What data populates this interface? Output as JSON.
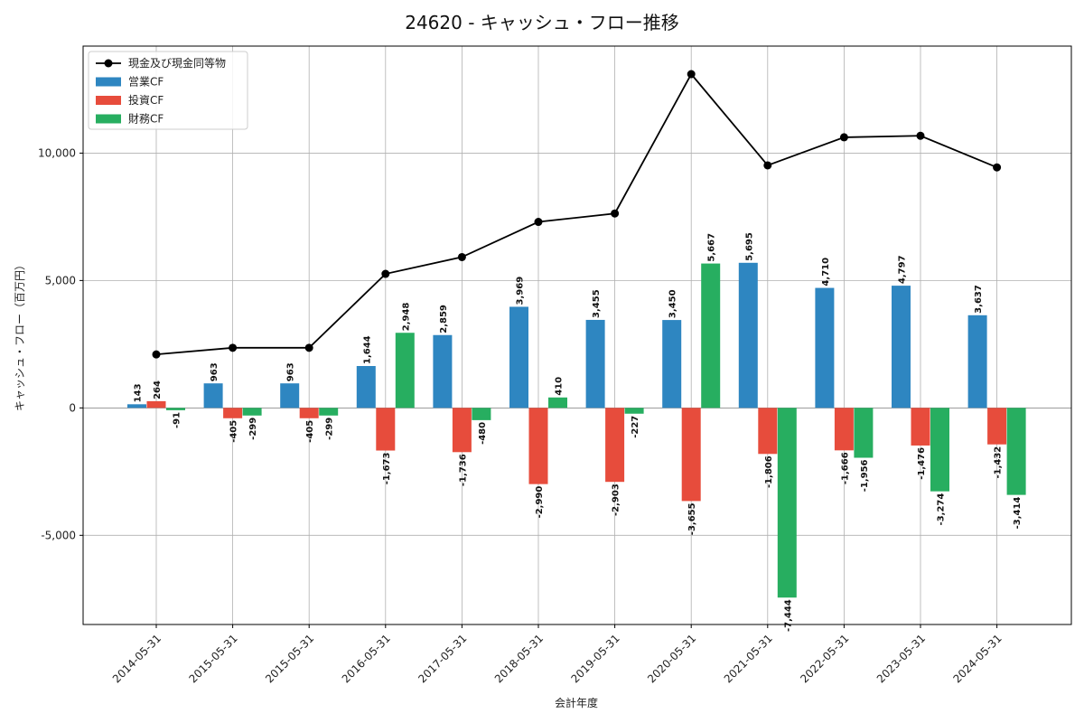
{
  "chart_data": {
    "type": "bar",
    "title": "24620 - キャッシュ・フロー推移",
    "xlabel": "会計年度",
    "ylabel": "キャッシュ・フロー（百万円）",
    "ylim": [
      -8500,
      14200
    ],
    "yticks": [
      -5000,
      0,
      5000,
      10000
    ],
    "ytick_labels": [
      "-5,000",
      "0",
      "5,000",
      "10,000"
    ],
    "grid": true,
    "legend_position": "top-left",
    "categories": [
      "2014-05-31",
      "2015-05-31",
      "2015-05-31",
      "2016-05-31",
      "2017-05-31",
      "2018-05-31",
      "2019-05-31",
      "2020-05-31",
      "2021-05-31",
      "2022-05-31",
      "2023-05-31",
      "2024-05-31"
    ],
    "series": [
      {
        "name": "営業CF",
        "type": "bar",
        "color": "#2e86c1",
        "values": [
          143,
          963,
          963,
          1644,
          2859,
          3969,
          3455,
          3450,
          5695,
          4710,
          4797,
          3637
        ],
        "labels": [
          "143",
          "963",
          "963",
          "1,644",
          "2,859",
          "3,969",
          "3,455",
          "3,450",
          "5,695",
          "4,710",
          "4,797",
          "3,637"
        ]
      },
      {
        "name": "投資CF",
        "type": "bar",
        "color": "#e74c3c",
        "values": [
          264,
          -405,
          -405,
          -1673,
          -1736,
          -2990,
          -2903,
          -3655,
          -1806,
          -1666,
          -1476,
          -1432
        ],
        "labels": [
          "264",
          "-405",
          "-405",
          "-1,673",
          "-1,736",
          "-2,990",
          "-2,903",
          "-3,655",
          "-1,806",
          "-1,666",
          "-1,476",
          "-1,432"
        ]
      },
      {
        "name": "財務CF",
        "type": "bar",
        "color": "#27ae60",
        "values": [
          -91,
          -299,
          -299,
          2948,
          -480,
          410,
          -227,
          5667,
          -7444,
          -1956,
          -3274,
          -3414
        ],
        "labels": [
          "-91",
          "-299",
          "-299",
          "2,948",
          "-480",
          "410",
          "-227",
          "5,667",
          "-7,444",
          "-1,956",
          "-3,274",
          "-3,414"
        ]
      },
      {
        "name": "現金及び現金同等物",
        "type": "line",
        "color": "#000000",
        "values": [
          2100,
          2360,
          2360,
          5260,
          5920,
          7300,
          7630,
          13100,
          9520,
          10620,
          10680,
          9440
        ]
      }
    ]
  }
}
